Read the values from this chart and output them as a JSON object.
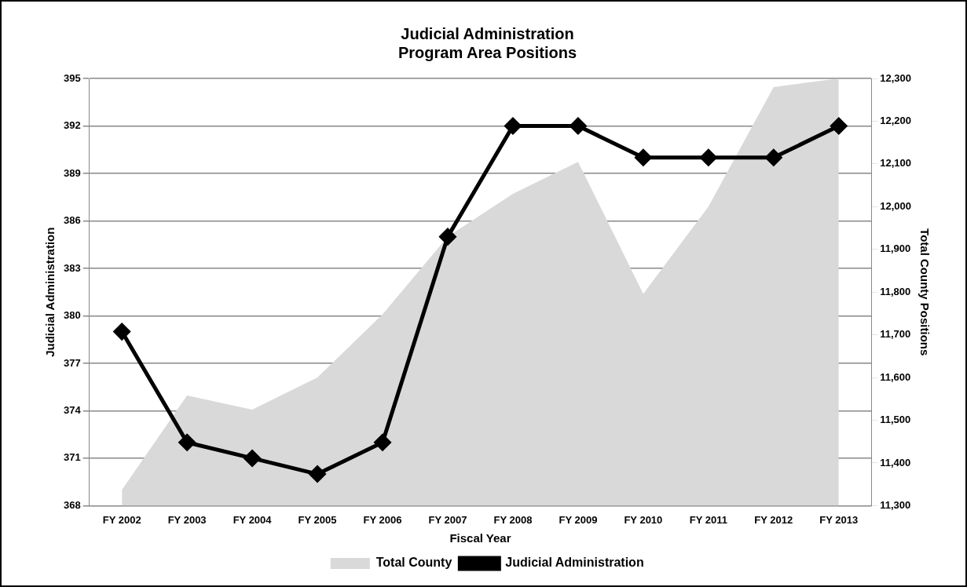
{
  "chart_data": {
    "type": "line",
    "title": "Judicial Administration\nProgram Area Positions",
    "xlabel": "Fiscal Year",
    "ylabel": "Judicial Administration",
    "y2label": "Total County Positions",
    "categories": [
      "FY 2002",
      "FY 2003",
      "FY 2004",
      "FY 2005",
      "FY 2006",
      "FY 2007",
      "FY 2008",
      "FY 2009",
      "FY 2010",
      "FY 2011",
      "FY 2012",
      "FY 2013"
    ],
    "series": [
      {
        "name": "Total County",
        "type": "area",
        "axis": "y2",
        "color": "#d9d9d9",
        "values": [
          11337,
          11558,
          11525,
          11600,
          11748,
          11930,
          12030,
          12105,
          11796,
          12000,
          12280,
          12300
        ]
      },
      {
        "name": "Judicial Administration",
        "color": "#000000",
        "marker": "diamond",
        "values": [
          379,
          372,
          371,
          370,
          372,
          385,
          392,
          392,
          390,
          390,
          390,
          392
        ]
      }
    ],
    "ylim": [
      368,
      395
    ],
    "yticks": [
      368,
      371,
      374,
      377,
      380,
      383,
      386,
      389,
      392,
      395
    ],
    "y2lim": [
      11300,
      12300
    ],
    "y2ticks": [
      {
        "value": 11300,
        "label": "11,300"
      },
      {
        "value": 11400,
        "label": "11,400"
      },
      {
        "value": 11500,
        "label": "11,500"
      },
      {
        "value": 11600,
        "label": "11,600"
      },
      {
        "value": 11700,
        "label": "11,700"
      },
      {
        "value": 11800,
        "label": "11,800"
      },
      {
        "value": 11900,
        "label": "11,900"
      },
      {
        "value": 12000,
        "label": "12,000"
      },
      {
        "value": 12100,
        "label": "12,100"
      },
      {
        "value": 12200,
        "label": "12,200"
      },
      {
        "value": 12300,
        "label": "12,300"
      }
    ],
    "grid": "y",
    "legend": "bottom"
  }
}
